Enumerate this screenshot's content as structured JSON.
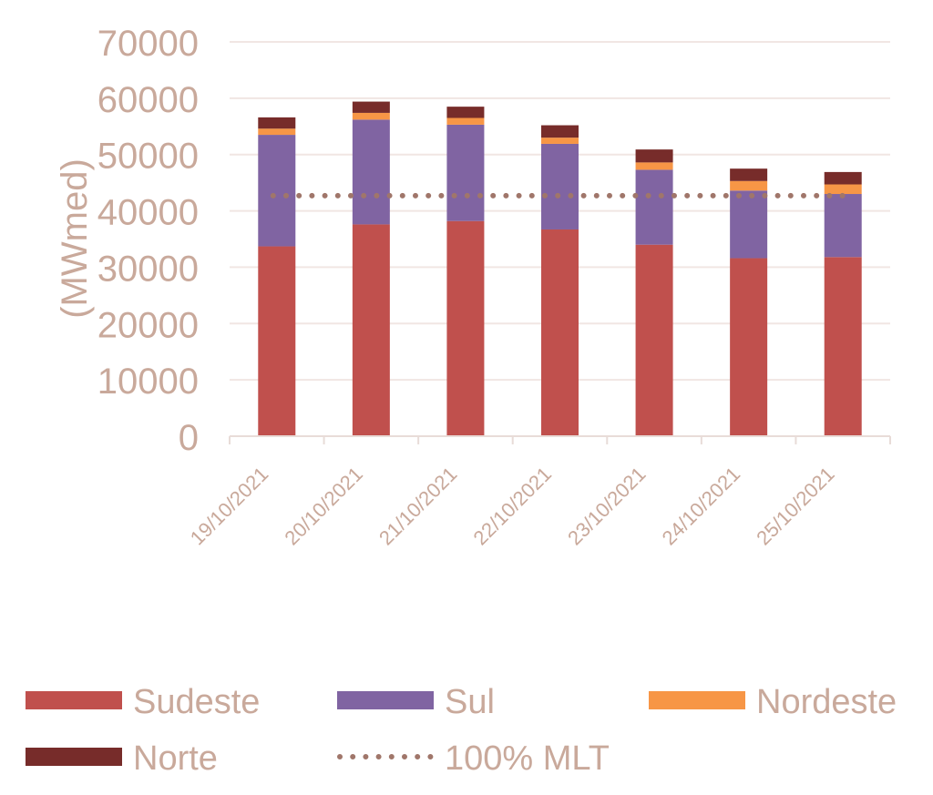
{
  "chart_data": {
    "type": "bar",
    "stacked": true,
    "categories": [
      "19/10/2021",
      "20/10/2021",
      "21/10/2021",
      "22/10/2021",
      "23/10/2021",
      "24/10/2021",
      "25/10/2021"
    ],
    "series": [
      {
        "name": "Sudeste",
        "color": "#c0504d",
        "values": [
          33700,
          37600,
          38200,
          36700,
          34000,
          31600,
          31800
        ]
      },
      {
        "name": "Sul",
        "color": "#8064a2",
        "values": [
          19800,
          18600,
          17100,
          15200,
          13300,
          12000,
          11200
        ]
      },
      {
        "name": "Nordeste",
        "color": "#f79646",
        "values": [
          1100,
          1200,
          1200,
          1100,
          1300,
          1700,
          1700
        ]
      },
      {
        "name": "Norte",
        "color": "#772c2a",
        "values": [
          2000,
          2000,
          2000,
          2200,
          2300,
          2200,
          2200
        ]
      }
    ],
    "reference_line": {
      "name": "100% MLT",
      "color": "#a0766a",
      "style": "dotted",
      "value": 42700
    },
    "ylabel": "(MWmed)",
    "xlabel": "",
    "ylim": [
      0,
      70000
    ],
    "yticks": [
      0,
      10000,
      20000,
      30000,
      40000,
      50000,
      60000,
      70000
    ],
    "grid": true,
    "legend_position": "bottom",
    "text_color": "#c9a99b"
  }
}
